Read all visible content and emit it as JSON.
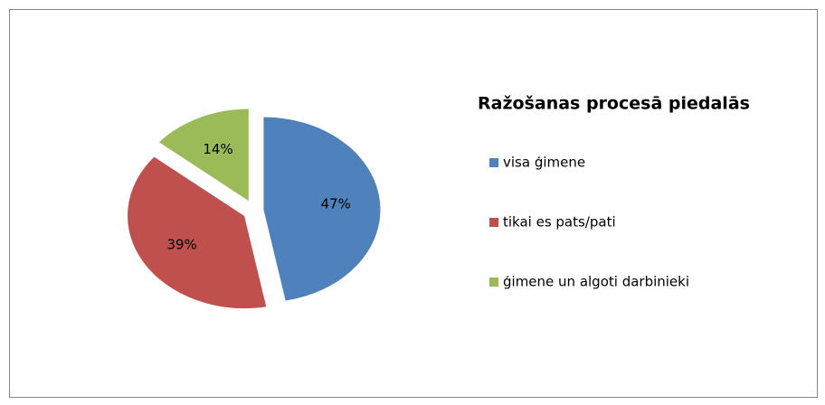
{
  "chart_data": {
    "type": "pie",
    "title": "Ražošanas procesā piedalās",
    "categories": [
      "visa ģimene",
      "tikai es pats/pati",
      "ģimene un algoti darbinieki"
    ],
    "values": [
      47,
      39,
      14
    ],
    "value_labels": [
      "47%",
      "39%",
      "14%"
    ],
    "colors": [
      "#4f81bd",
      "#c0504d",
      "#9bbb59"
    ],
    "legend": "right"
  }
}
